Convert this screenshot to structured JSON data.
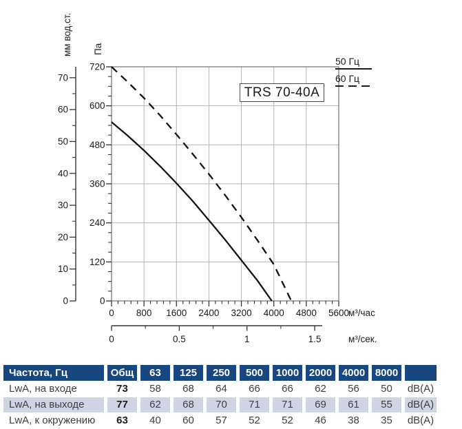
{
  "chart_data": {
    "type": "line",
    "title": "TRS 70-40A",
    "x_axis": {
      "label": "м³/час",
      "min": 0,
      "max": 5600,
      "major_ticks": [
        0,
        800,
        1600,
        2400,
        3200,
        4000,
        4800,
        5600
      ],
      "minor_step": 160
    },
    "x_axis_secondary": {
      "label": "м³/сек.",
      "major_ticks": [
        0,
        0.5,
        1,
        1.5
      ],
      "tick_labels": [
        "0",
        "0.5",
        "1",
        "1.5"
      ],
      "minor_step": 0.25
    },
    "y_axis": {
      "label": "Па",
      "min": 0,
      "max": 720,
      "major_ticks": [
        0,
        120,
        240,
        360,
        480,
        600,
        720
      ],
      "minor_step": 30
    },
    "y_axis_secondary": {
      "label": "мм вод.ст.",
      "major_ticks": [
        0,
        10,
        20,
        30,
        40,
        50,
        60,
        70
      ],
      "minor_step": 5,
      "pa_per_unit": 9.80665
    },
    "grid": true,
    "legend_position": "top-right",
    "legend": [
      {
        "label": "50 Гц",
        "line": "solid"
      },
      {
        "label": "60 Гц",
        "line": "dashed"
      }
    ],
    "series": [
      {
        "name": "50 Гц",
        "line": "solid",
        "points": [
          [
            0,
            550
          ],
          [
            400,
            508
          ],
          [
            800,
            463
          ],
          [
            1200,
            414
          ],
          [
            1600,
            362
          ],
          [
            2000,
            307
          ],
          [
            2400,
            248
          ],
          [
            2800,
            188
          ],
          [
            3200,
            125
          ],
          [
            3600,
            62
          ],
          [
            3950,
            0
          ]
        ]
      },
      {
        "name": "60 Гц",
        "line": "dashed",
        "points": [
          [
            0,
            720
          ],
          [
            400,
            673
          ],
          [
            800,
            624
          ],
          [
            1200,
            570
          ],
          [
            1600,
            512
          ],
          [
            2000,
            452
          ],
          [
            2400,
            390
          ],
          [
            2800,
            325
          ],
          [
            3200,
            257
          ],
          [
            3600,
            186
          ],
          [
            4000,
            112
          ],
          [
            4430,
            0
          ]
        ]
      }
    ]
  },
  "table": {
    "header": [
      "Частота, Гц",
      "Общ",
      "63",
      "125",
      "250",
      "500",
      "1000",
      "2000",
      "4000",
      "8000",
      ""
    ],
    "rows": [
      {
        "label": "LwA, на входе",
        "total": "73",
        "values": [
          "58",
          "68",
          "64",
          "66",
          "66",
          "62",
          "56",
          "50"
        ],
        "unit": "dB(A)",
        "highlighted": false
      },
      {
        "label": "LwA, на выходе",
        "total": "77",
        "values": [
          "62",
          "68",
          "70",
          "71",
          "71",
          "69",
          "61",
          "55"
        ],
        "unit": "dB(A)",
        "highlighted": true
      },
      {
        "label": "LwA, к окружению",
        "total": "63",
        "values": [
          "40",
          "60",
          "57",
          "52",
          "52",
          "46",
          "38",
          "35"
        ],
        "unit": "dB(A)",
        "highlighted": false
      }
    ],
    "colors": {
      "header_bg": "#17477E",
      "header_text": "#FFFFFF",
      "highlight_bg": "#CDD4E4",
      "body_text": "#3D3D3D"
    }
  }
}
